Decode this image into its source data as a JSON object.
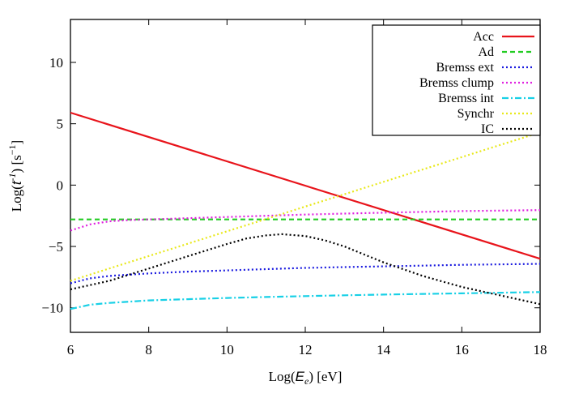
{
  "chart_data": {
    "type": "line",
    "title": "",
    "xlabel": {
      "prefix": "Log(",
      "var": "E",
      "sub": "e",
      "suffix": ") [eV]"
    },
    "ylabel": {
      "prefix": "Log(",
      "var": "t",
      "sup": "-1",
      "suffix": ") [s",
      "unit_sup": "−1",
      "close": "]"
    },
    "xlim": [
      6,
      18
    ],
    "ylim": [
      -12,
      13.5
    ],
    "xticks": [
      6,
      8,
      10,
      12,
      14,
      16,
      18
    ],
    "yticks": [
      -10,
      -5,
      0,
      5,
      10
    ],
    "grid": false,
    "legend_position": "top-right",
    "series": [
      {
        "name": "Acc",
        "color": "#e8141b",
        "dash": "solid",
        "x": [
          6,
          18
        ],
        "y": [
          5.9,
          -6.0
        ]
      },
      {
        "name": "Ad",
        "color": "#22cc22",
        "dash": "dashed",
        "x": [
          6,
          18
        ],
        "y": [
          -2.8,
          -2.8
        ]
      },
      {
        "name": "Bremss ext",
        "color": "#1a1adf",
        "dash": "dotted",
        "x": [
          6,
          6.5,
          7,
          8,
          9,
          10,
          11,
          12,
          13,
          14,
          15,
          16,
          17,
          18
        ],
        "y": [
          -8.0,
          -7.6,
          -7.4,
          -7.2,
          -7.05,
          -6.95,
          -6.85,
          -6.75,
          -6.68,
          -6.62,
          -6.56,
          -6.5,
          -6.46,
          -6.42
        ]
      },
      {
        "name": "Bremss clump",
        "color": "#e020e0",
        "dash": "dotted",
        "x": [
          6,
          6.5,
          7,
          7.5,
          8,
          9,
          10,
          11,
          12,
          13,
          14,
          15,
          16,
          17,
          18
        ],
        "y": [
          -3.7,
          -3.2,
          -2.95,
          -2.85,
          -2.8,
          -2.7,
          -2.6,
          -2.5,
          -2.4,
          -2.32,
          -2.25,
          -2.18,
          -2.12,
          -2.08,
          -2.04
        ]
      },
      {
        "name": "Bremss int",
        "color": "#18d0e6",
        "dash": "dashdot",
        "x": [
          6,
          6.5,
          7,
          8,
          9,
          10,
          11,
          12,
          13,
          14,
          15,
          16,
          17,
          18
        ],
        "y": [
          -10.1,
          -9.75,
          -9.6,
          -9.4,
          -9.3,
          -9.2,
          -9.12,
          -9.05,
          -8.98,
          -8.92,
          -8.87,
          -8.82,
          -8.77,
          -8.72
        ]
      },
      {
        "name": "Synchr",
        "color": "#e8e81a",
        "dash": "dotted",
        "x": [
          6,
          18
        ],
        "y": [
          -7.8,
          4.3
        ]
      },
      {
        "name": "IC",
        "color": "#000000",
        "dash": "dotted",
        "x": [
          6,
          7,
          8,
          9,
          10,
          10.5,
          11,
          11.4,
          12,
          12.5,
          13,
          14,
          15,
          16,
          17,
          18
        ],
        "y": [
          -8.5,
          -7.8,
          -6.8,
          -5.8,
          -4.8,
          -4.35,
          -4.1,
          -4.0,
          -4.15,
          -4.5,
          -5.0,
          -6.3,
          -7.4,
          -8.3,
          -9.0,
          -9.7
        ]
      }
    ]
  }
}
